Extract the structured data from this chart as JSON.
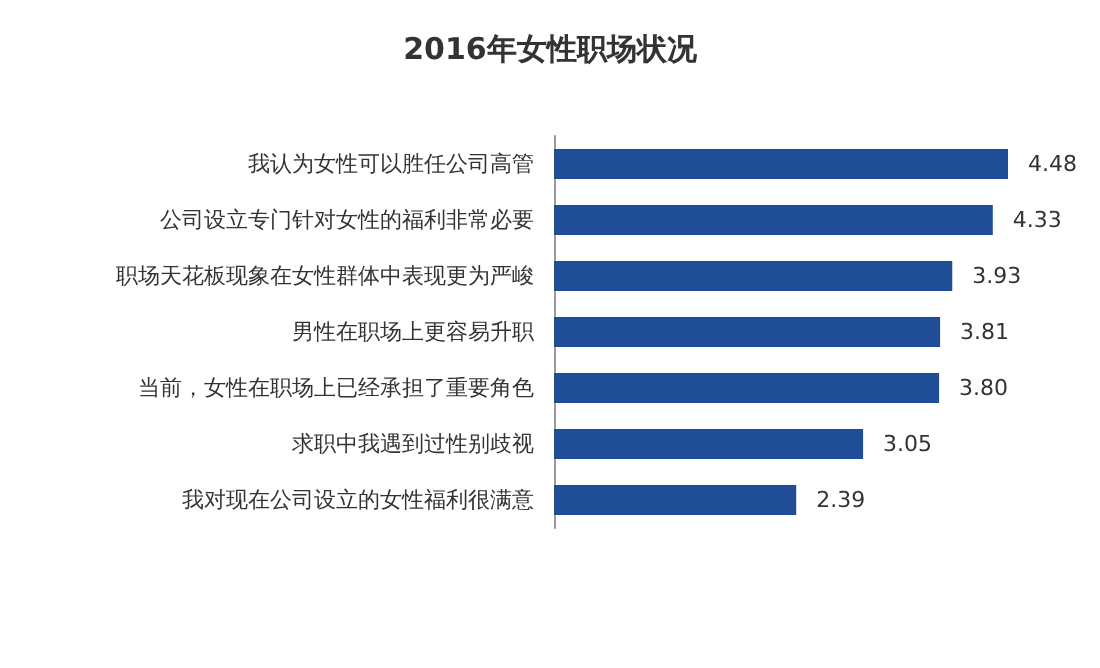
{
  "chart_data": {
    "type": "bar",
    "orientation": "horizontal",
    "title": "2016年女性职场状况",
    "categories": [
      "我认为女性可以胜任公司高管",
      "公司设立专门针对女性的福利非常必要",
      "职场天花板现象在女性群体中表现更为严峻",
      "男性在职场上更容易升职",
      "当前，女性在职场上已经承担了重要角色",
      "求职中我遇到过性别歧视",
      "我对现在公司设立的女性福利很满意"
    ],
    "values": [
      4.48,
      4.33,
      3.93,
      3.81,
      3.8,
      3.05,
      2.39
    ],
    "value_labels": [
      "4.48",
      "4.33",
      "3.93",
      "3.81",
      "3.80",
      "3.05",
      "2.39"
    ],
    "color": "#1f4e96"
  }
}
